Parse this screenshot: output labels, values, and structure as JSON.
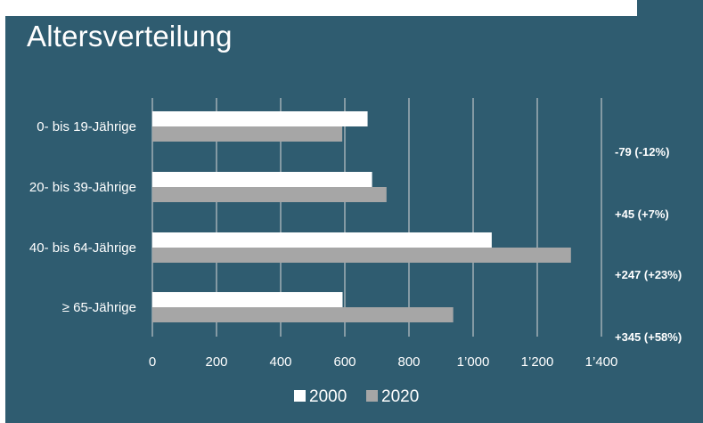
{
  "colors": {
    "background": "#2f5c70",
    "series_2000": "#ffffff",
    "series_2020": "#a6a6a6",
    "gridline": "#d9d9d9",
    "text": "#ffffff"
  },
  "chart_data": {
    "type": "bar",
    "orientation": "horizontal",
    "title": "Altersverteilung",
    "categories": [
      "0- bis 19-Jährige",
      "20- bis 39-Jährige",
      "40- bis 64-Jährige",
      "≥ 65-Jährige"
    ],
    "series": [
      {
        "name": "2000",
        "values": [
          671,
          685,
          1058,
          593
        ]
      },
      {
        "name": "2020",
        "values": [
          592,
          730,
          1305,
          938
        ]
      }
    ],
    "xlim": [
      0,
      1400
    ],
    "xticks": [
      "0",
      "200",
      "400",
      "600",
      "800",
      "1’000",
      "1’200",
      "1’400"
    ],
    "grid": true,
    "legend": "bottom",
    "annotations": [
      "-79 (-12%)",
      "+45 (+7%)",
      "+247 (+23%)",
      "+345 (+58%)"
    ]
  }
}
